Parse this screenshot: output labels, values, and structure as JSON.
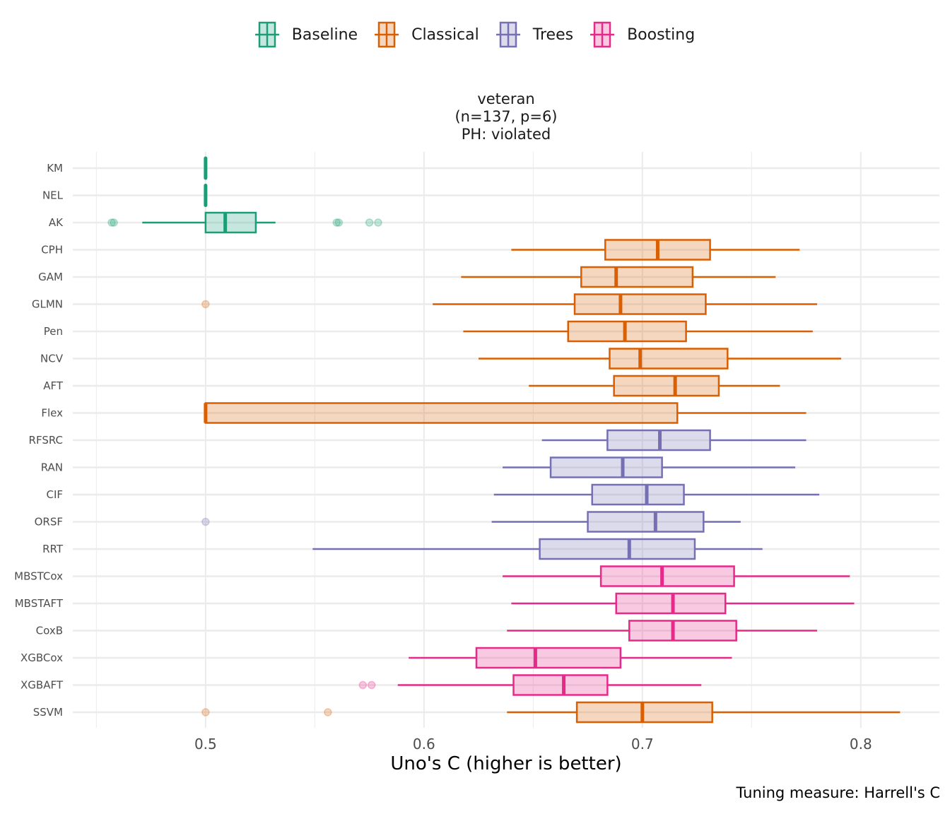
{
  "chart_data": {
    "type": "boxplot-horizontal",
    "title": "veteran\n(n=137, p=6)\nPH: violated",
    "title_lines": [
      "veteran",
      "(n=137, p=6)",
      "PH: violated"
    ],
    "xlabel": "Uno's C (higher is better)",
    "ylabel": "",
    "caption": "Tuning measure: Harrell's C",
    "xlim": [
      0.4392,
      0.836
    ],
    "x_ticks": [
      0.5,
      0.6,
      0.7,
      0.8
    ],
    "x_tick_labels": [
      "0.5",
      "0.6",
      "0.7",
      "0.8"
    ],
    "x_minor_grid": [
      0.45,
      0.55,
      0.65,
      0.75
    ],
    "grid": true,
    "legend_position": "top",
    "legend": [
      {
        "name": "Baseline",
        "color": "#1b9e77"
      },
      {
        "name": "Classical",
        "color": "#d95f02"
      },
      {
        "name": "Trees",
        "color": "#7570b3"
      },
      {
        "name": "Boosting",
        "color": "#e7298a"
      }
    ],
    "categories": [
      "KM",
      "NEL",
      "AK",
      "CPH",
      "GAM",
      "GLMN",
      "Pen",
      "NCV",
      "AFT",
      "Flex",
      "RFSRC",
      "RAN",
      "CIF",
      "ORSF",
      "RRT",
      "MBSTCox",
      "MBSTAFT",
      "CoxB",
      "XGBCox",
      "XGBAFT",
      "SSVM"
    ],
    "series": [
      {
        "model": "KM",
        "group": "Baseline",
        "min": 0.5,
        "q1": 0.5,
        "median": 0.5,
        "q3": 0.5,
        "max": 0.5,
        "outliers": []
      },
      {
        "model": "NEL",
        "group": "Baseline",
        "min": 0.5,
        "q1": 0.5,
        "median": 0.5,
        "q3": 0.5,
        "max": 0.5,
        "outliers": []
      },
      {
        "model": "AK",
        "group": "Baseline",
        "min": 0.471,
        "q1": 0.5,
        "median": 0.509,
        "q3": 0.523,
        "max": 0.532,
        "outliers": [
          0.457,
          0.458,
          0.56,
          0.561,
          0.575,
          0.579
        ]
      },
      {
        "model": "CPH",
        "group": "Classical",
        "min": 0.64,
        "q1": 0.683,
        "median": 0.707,
        "q3": 0.731,
        "max": 0.772,
        "outliers": []
      },
      {
        "model": "GAM",
        "group": "Classical",
        "min": 0.617,
        "q1": 0.672,
        "median": 0.688,
        "q3": 0.723,
        "max": 0.761,
        "outliers": []
      },
      {
        "model": "GLMN",
        "group": "Classical",
        "min": 0.604,
        "q1": 0.669,
        "median": 0.69,
        "q3": 0.729,
        "max": 0.78,
        "outliers": [
          0.5
        ]
      },
      {
        "model": "Pen",
        "group": "Classical",
        "min": 0.618,
        "q1": 0.666,
        "median": 0.692,
        "q3": 0.72,
        "max": 0.778,
        "outliers": []
      },
      {
        "model": "NCV",
        "group": "Classical",
        "min": 0.625,
        "q1": 0.685,
        "median": 0.699,
        "q3": 0.739,
        "max": 0.791,
        "outliers": []
      },
      {
        "model": "AFT",
        "group": "Classical",
        "min": 0.648,
        "q1": 0.687,
        "median": 0.715,
        "q3": 0.735,
        "max": 0.763,
        "outliers": []
      },
      {
        "model": "Flex",
        "group": "Classical",
        "min": 0.5,
        "q1": 0.5,
        "median": 0.5,
        "q3": 0.716,
        "max": 0.775,
        "outliers": []
      },
      {
        "model": "RFSRC",
        "group": "Trees",
        "min": 0.654,
        "q1": 0.684,
        "median": 0.708,
        "q3": 0.731,
        "max": 0.775,
        "outliers": []
      },
      {
        "model": "RAN",
        "group": "Trees",
        "min": 0.636,
        "q1": 0.658,
        "median": 0.691,
        "q3": 0.709,
        "max": 0.77,
        "outliers": []
      },
      {
        "model": "CIF",
        "group": "Trees",
        "min": 0.632,
        "q1": 0.677,
        "median": 0.702,
        "q3": 0.719,
        "max": 0.781,
        "outliers": []
      },
      {
        "model": "ORSF",
        "group": "Trees",
        "min": 0.631,
        "q1": 0.675,
        "median": 0.706,
        "q3": 0.728,
        "max": 0.745,
        "outliers": [
          0.5
        ]
      },
      {
        "model": "RRT",
        "group": "Trees",
        "min": 0.549,
        "q1": 0.653,
        "median": 0.694,
        "q3": 0.724,
        "max": 0.755,
        "outliers": []
      },
      {
        "model": "MBSTCox",
        "group": "Boosting",
        "min": 0.636,
        "q1": 0.681,
        "median": 0.709,
        "q3": 0.742,
        "max": 0.795,
        "outliers": []
      },
      {
        "model": "MBSTAFT",
        "group": "Boosting",
        "min": 0.64,
        "q1": 0.688,
        "median": 0.714,
        "q3": 0.738,
        "max": 0.797,
        "outliers": []
      },
      {
        "model": "CoxB",
        "group": "Boosting",
        "min": 0.638,
        "q1": 0.694,
        "median": 0.714,
        "q3": 0.743,
        "max": 0.78,
        "outliers": []
      },
      {
        "model": "XGBCox",
        "group": "Boosting",
        "min": 0.593,
        "q1": 0.624,
        "median": 0.651,
        "q3": 0.69,
        "max": 0.741,
        "outliers": []
      },
      {
        "model": "XGBAFT",
        "group": "Boosting",
        "min": 0.588,
        "q1": 0.641,
        "median": 0.664,
        "q3": 0.684,
        "max": 0.727,
        "outliers": [
          0.572,
          0.576
        ]
      },
      {
        "model": "SSVM",
        "group": "Classical",
        "min": 0.638,
        "q1": 0.67,
        "median": 0.7,
        "q3": 0.732,
        "max": 0.818,
        "outliers": [
          0.5,
          0.556
        ]
      }
    ]
  }
}
